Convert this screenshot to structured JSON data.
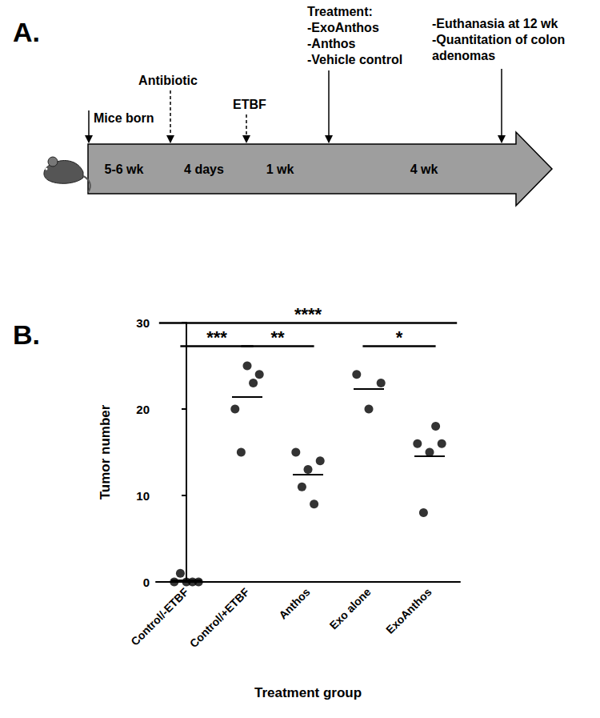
{
  "panel_labels": [
    "A.",
    "B."
  ],
  "timeline": {
    "segments": [
      "5-6 wk",
      "4 days",
      "1 wk",
      "4 wk"
    ],
    "events": [
      {
        "lines": [
          "Mice born"
        ],
        "line_style": "solid"
      },
      {
        "lines": [
          "Antibiotic"
        ],
        "line_style": "dashed"
      },
      {
        "lines": [
          "ETBF"
        ],
        "line_style": "dashed"
      },
      {
        "lines": [
          "Treatment:",
          "-ExoAnthos",
          "-Anthos",
          "-Vehicle control"
        ],
        "line_style": "solid"
      },
      {
        "lines": [
          "-Euthanasia at 12 wk",
          "-Quantitation of colon",
          "adenomas"
        ],
        "line_style": "solid"
      }
    ]
  },
  "chart_data": {
    "type": "scatter",
    "x_label": "Treatment group",
    "y_label": "Tumor number",
    "categories": [
      "Control/-ETBF",
      "Control/+ETBF",
      "Anthos",
      "Exo alone",
      "ExoAnthos"
    ],
    "values": [
      [
        0,
        1,
        0,
        0,
        0
      ],
      [
        20,
        15,
        25,
        23,
        24
      ],
      [
        15,
        11,
        13,
        9,
        14
      ],
      [
        24,
        20,
        23
      ],
      [
        16,
        8,
        15,
        18,
        16
      ]
    ],
    "means": [
      0.2,
      21.4,
      12.4,
      22.3,
      14.6
    ],
    "color": "#000000",
    "marker": "circle",
    "ylim": [
      0,
      30
    ],
    "yticks": [
      0,
      10,
      20,
      30
    ],
    "grid": false,
    "annotations": [
      {
        "text": "****",
        "from": "Control/-ETBF",
        "to": "ExoAnthos"
      },
      {
        "text": "***",
        "from": "Control/-ETBF",
        "to": "Control/+ETBF"
      },
      {
        "text": "**",
        "from": "Control/+ETBF",
        "to": "Anthos"
      },
      {
        "text": "*",
        "from": "Exo alone",
        "to": "ExoAnthos"
      }
    ]
  }
}
